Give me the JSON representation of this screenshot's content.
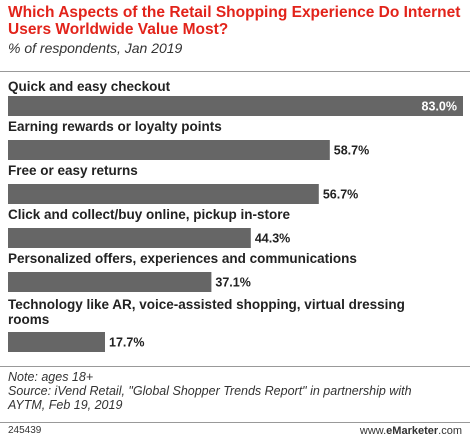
{
  "header": {
    "title": "Which Aspects of the Retail Shopping Experience Do Internet Users Worldwide Value Most?",
    "subtitle": "% of respondents, Jan 2019"
  },
  "chart_data": {
    "type": "bar",
    "orientation": "horizontal",
    "categories": [
      "Quick and easy checkout",
      "Earning rewards or loyalty points",
      "Free or easy returns",
      "Click and collect/buy online, pickup in-store",
      "Personalized offers, experiences and communications",
      "Technology like AR, voice-assisted shopping, virtual dressing rooms"
    ],
    "values": [
      83.0,
      58.7,
      56.7,
      44.3,
      37.1,
      17.7
    ],
    "value_labels": [
      "83.0%",
      "58.7%",
      "56.7%",
      "44.3%",
      "37.1%",
      "17.7%"
    ],
    "xlim": [
      0,
      83.0
    ],
    "bar_color": "#666666",
    "grid": false,
    "legend": "none"
  },
  "footer": {
    "note": "Note: ages 18+",
    "source_line1": "Source: iVend Retail, \"Global Shopper Trends Report\" in partnership with",
    "source_line2": "AYTM, Feb 19, 2019",
    "id": "245439",
    "brand_prefix": "www.",
    "brand_name": "eMarketer",
    "brand_suffix": ".com"
  }
}
